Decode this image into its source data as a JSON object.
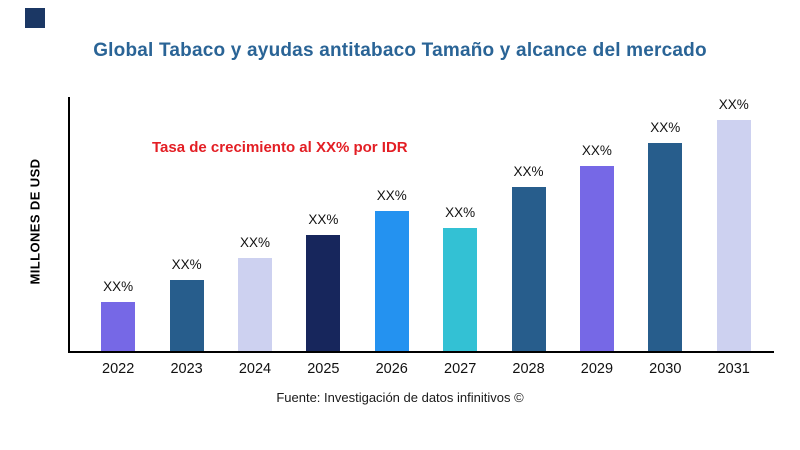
{
  "brand": {
    "logo_color": "#1b3764"
  },
  "title": "Global Tabaco y ayudas antitabaco Tamaño y alcance del mercado",
  "source": "Fuente: Investigación de datos infinitivos ©",
  "chart_data": {
    "type": "bar",
    "title": "Global Tabaco y ayudas antitabaco Tamaño y alcance del mercado",
    "xlabel": "",
    "ylabel": "MILLONES DE USD",
    "categories": [
      "2022",
      "2023",
      "2024",
      "2025",
      "2026",
      "2027",
      "2028",
      "2029",
      "2030",
      "2031"
    ],
    "value_labels": [
      "XX%",
      "XX%",
      "XX%",
      "XX%",
      "XX%",
      "XX%",
      "XX%",
      "XX%",
      "XX%",
      "XX%"
    ],
    "values": [
      49,
      71,
      93,
      116,
      140,
      123,
      164,
      185,
      208,
      231
    ],
    "values_note": "numeric values not shown on chart (labeled XX%); heights estimated in px relative to axis",
    "bar_colors": [
      "#7668e6",
      "#275d8c",
      "#cdd1f0",
      "#17265c",
      "#2492f0",
      "#33c1d4",
      "#275d8c",
      "#7668e6",
      "#275d8c",
      "#cdd1f0"
    ],
    "annotation": "Tasa de crecimiento al XX% por IDR",
    "annotation_color": "#e31e24",
    "title_color": "#2a6496",
    "axis_color": "#000000",
    "grid": false,
    "legend": "none",
    "ylim": [
      0,
      256
    ]
  }
}
